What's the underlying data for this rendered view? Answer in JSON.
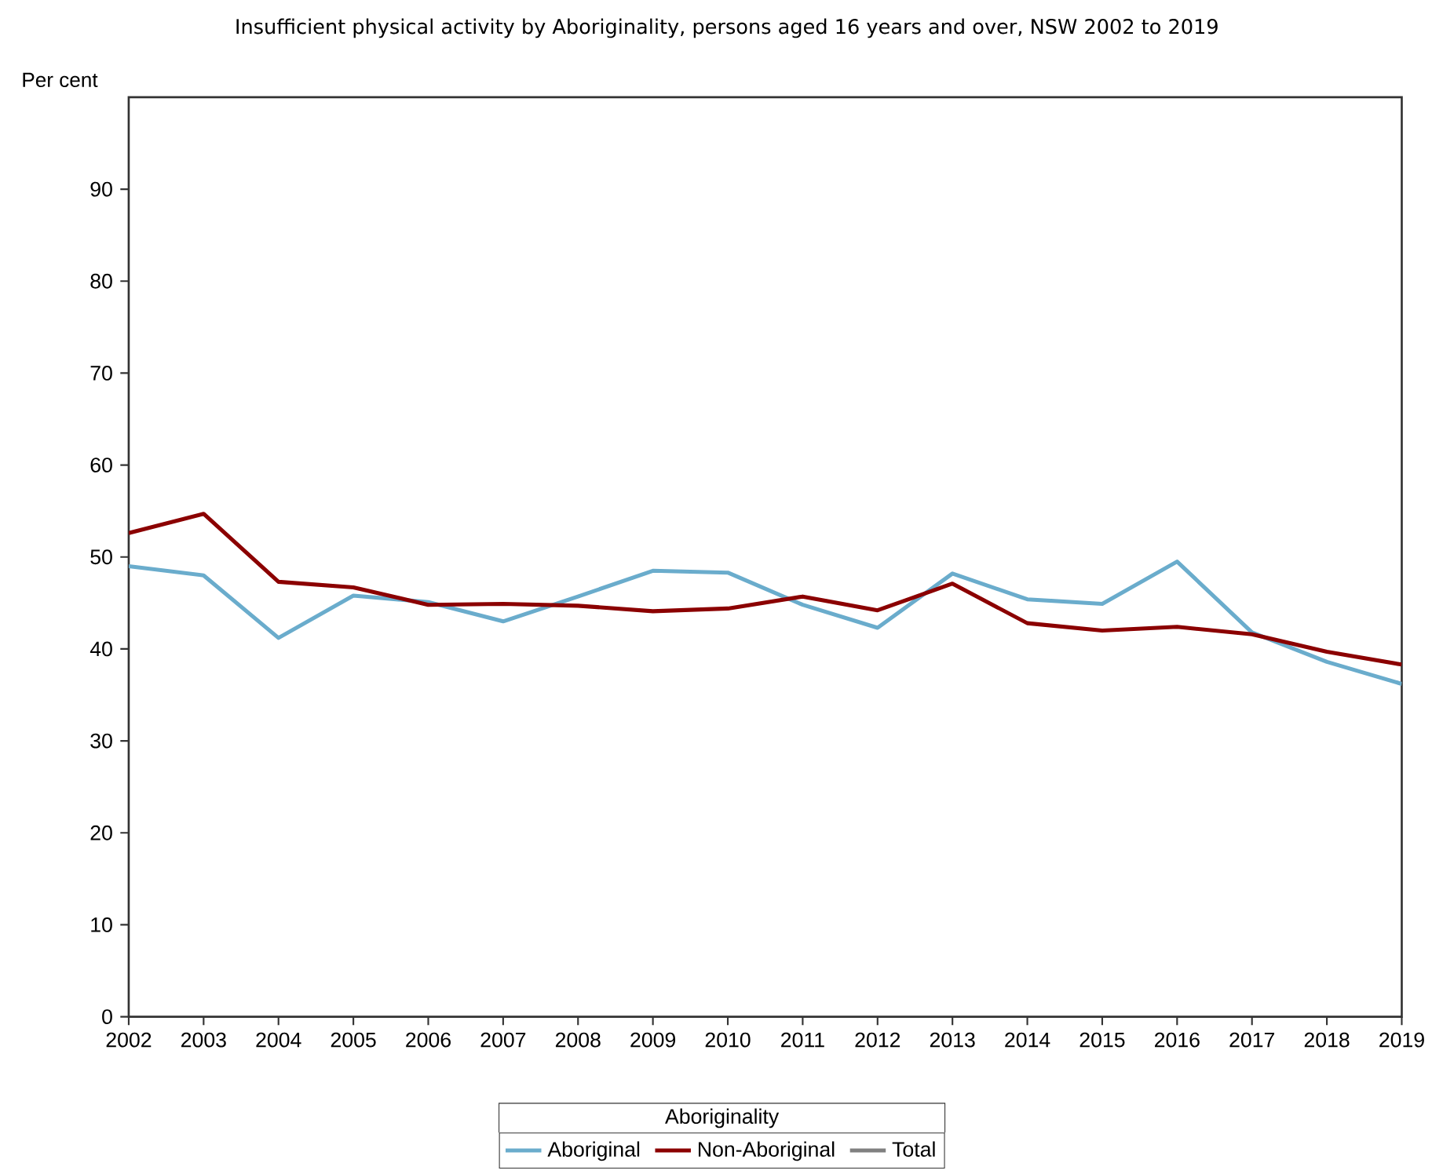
{
  "chart_data": {
    "type": "line",
    "title": "Insufficient physical activity by Aboriginality, persons aged 16 years and over,  NSW 2002 to 2019",
    "ylabel": "Per cent",
    "legend_title": "Aboriginality",
    "x": [
      2002,
      2003,
      2004,
      2005,
      2006,
      2007,
      2008,
      2009,
      2010,
      2011,
      2012,
      2013,
      2014,
      2015,
      2016,
      2017,
      2018,
      2019
    ],
    "series": [
      {
        "name": "Aboriginal",
        "color": "#6aaccc",
        "values": [
          49.0,
          48.0,
          41.2,
          45.8,
          45.1,
          43.0,
          45.7,
          48.5,
          48.3,
          44.8,
          42.3,
          48.2,
          45.4,
          44.9,
          49.5,
          41.8,
          38.6,
          36.2
        ]
      },
      {
        "name": "Non-Aboriginal",
        "color": "#8b0000",
        "values": [
          52.6,
          54.7,
          47.3,
          46.7,
          44.8,
          44.9,
          44.7,
          44.1,
          44.4,
          45.7,
          44.2,
          47.1,
          42.8,
          42.0,
          42.4,
          41.6,
          39.7,
          38.3
        ]
      },
      {
        "name": "Total",
        "color": "#808080",
        "values": [
          null,
          null,
          null,
          null,
          null,
          null,
          null,
          null,
          null,
          null,
          null,
          null,
          null,
          null,
          null,
          null,
          null,
          null
        ]
      }
    ],
    "xlim": [
      2002,
      2019
    ],
    "xticks": [
      2002,
      2003,
      2004,
      2005,
      2006,
      2007,
      2008,
      2009,
      2010,
      2011,
      2012,
      2013,
      2014,
      2015,
      2016,
      2017,
      2018,
      2019
    ],
    "ylim": [
      0,
      100
    ],
    "yticks": [
      0,
      10,
      20,
      30,
      40,
      50,
      60,
      70,
      80,
      90
    ],
    "grid": false,
    "legend": "bottom",
    "marker": "none",
    "line_style": "solid"
  }
}
